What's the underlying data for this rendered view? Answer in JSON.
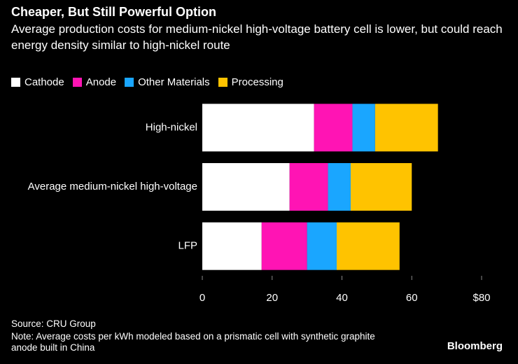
{
  "chart_data": {
    "type": "bar",
    "orientation": "horizontal",
    "stacked": true,
    "title": "Cheaper, But Still Powerful Option",
    "subtitle": "Average production costs for medium-nickel high-voltage battery cell is lower, but could reach energy density similar to high-nickel route",
    "categories": [
      "High-nickel",
      "Average medium-nickel high-voltage",
      "LFP"
    ],
    "series": [
      {
        "name": "Cathode",
        "color": "#ffffff",
        "values": [
          32,
          25,
          17
        ]
      },
      {
        "name": "Anode",
        "color": "#ff14b4",
        "values": [
          11,
          11,
          13
        ]
      },
      {
        "name": "Other Materials",
        "color": "#1aa6ff",
        "values": [
          6.5,
          6.5,
          8.5
        ]
      },
      {
        "name": "Processing",
        "color": "#ffc300",
        "values": [
          18,
          17.5,
          18
        ]
      }
    ],
    "xlim": [
      0,
      80
    ],
    "xticks": [
      0,
      20,
      40,
      60,
      {
        "value": 80,
        "label": "$80"
      }
    ],
    "legend": "top-left",
    "source": "Source: CRU Group",
    "note": "Note: Average costs per kWh modeled based on a prismatic cell with synthetic graphite anode built in China",
    "brand": "Bloomberg"
  }
}
